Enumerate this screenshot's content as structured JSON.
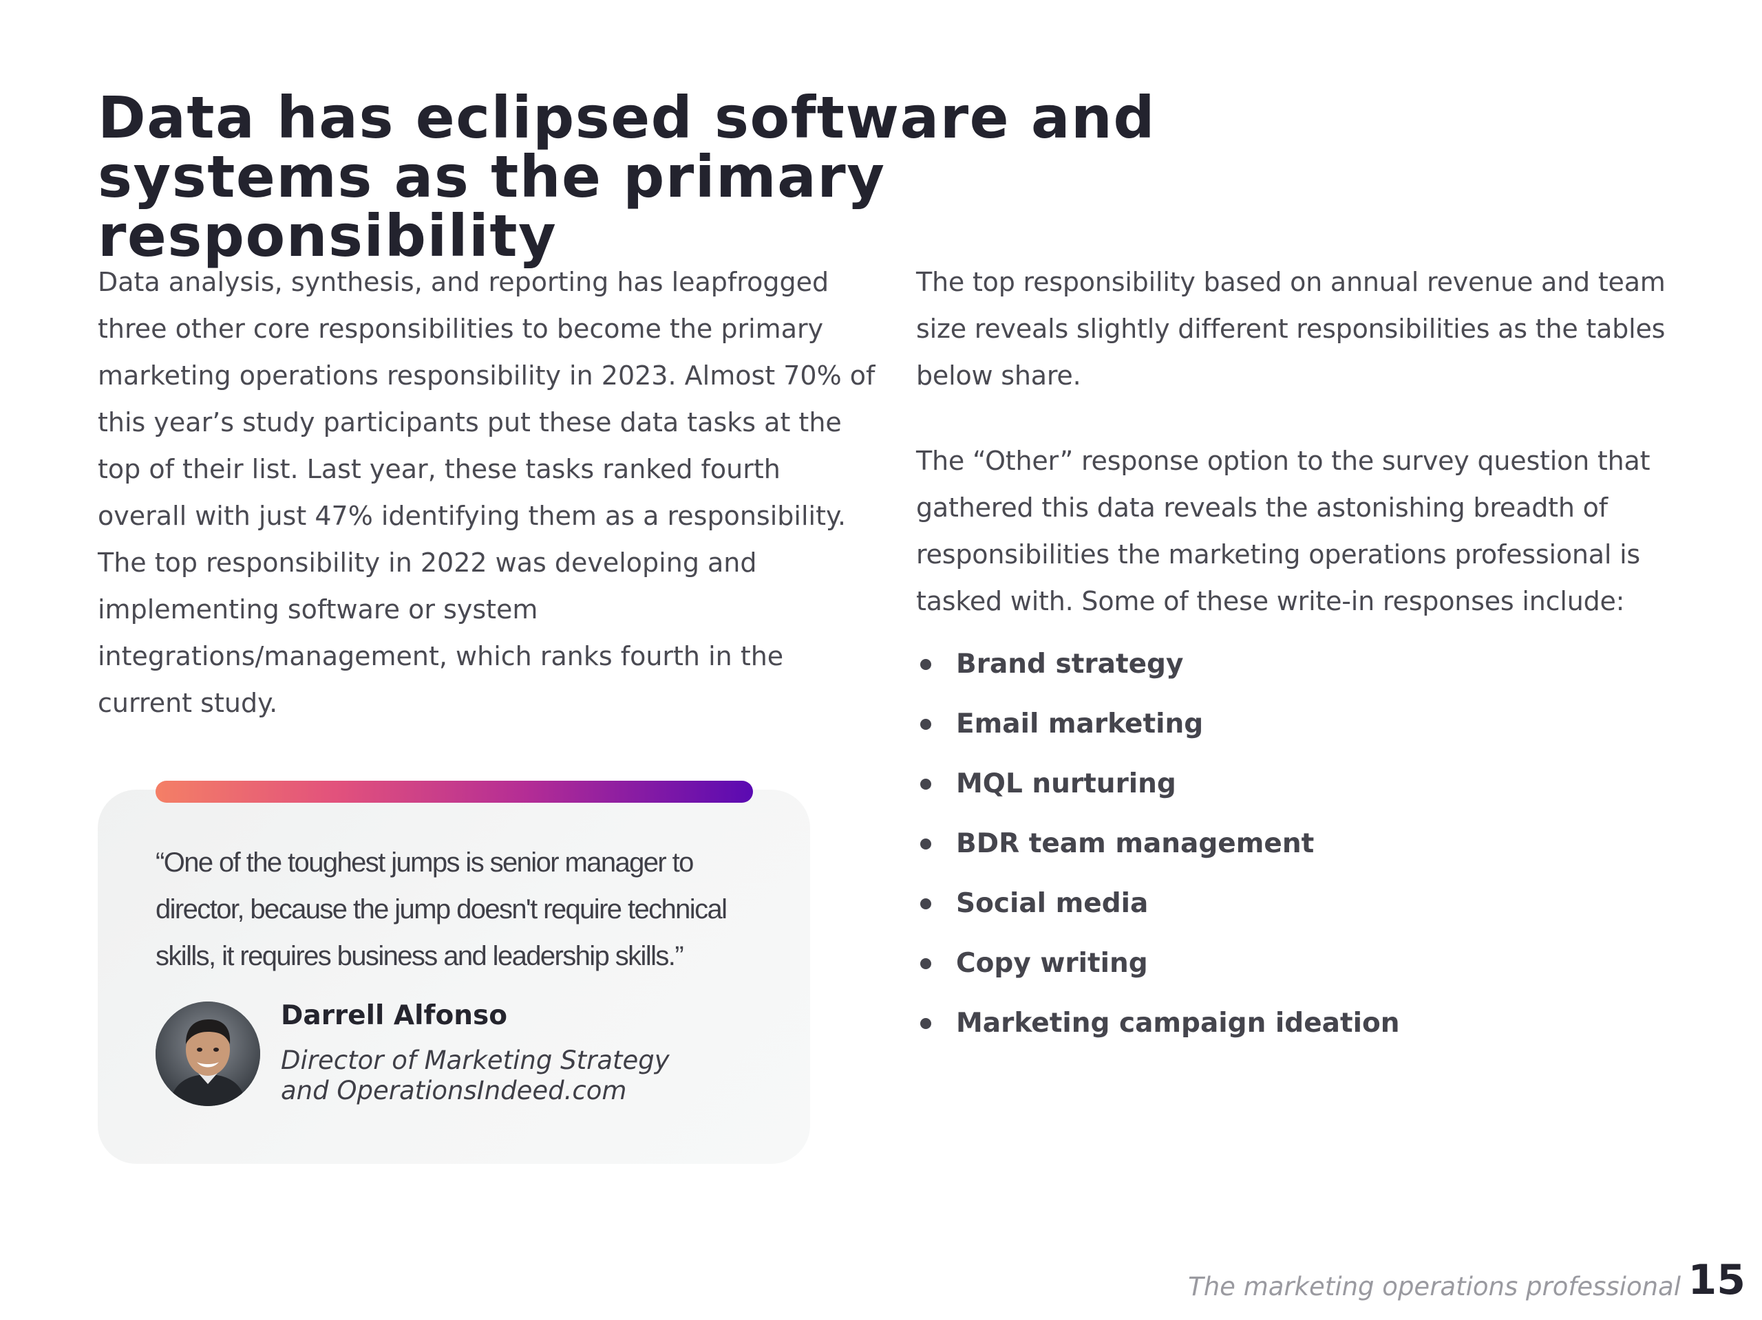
{
  "title": {
    "line1": "Data has eclipsed software and",
    "line2": "systems as the primary responsibility"
  },
  "left_column": {
    "paragraph": "Data analysis, synthesis, and reporting has leapfrogged three other core responsibilities to become the primary marketing operations responsibility in 2023. Almost 70% of this year’s study participants put these data tasks at the top of their list. Last year, these tasks ranked fourth overall with just 47% identifying them as a responsibility. The top responsibility in 2022 was developing and implementing software or system integrations/management, which ranks fourth in the current study."
  },
  "right_column": {
    "paragraph1": "The top responsibility based on annual revenue  and team size reveals slightly different responsibilities as the tables below share.",
    "paragraph2": "The “Other” response option to the survey question that gathered this data reveals the astonishing breadth of responsibilities the marketing operations professional is tasked with. Some of these write-in responses include:",
    "bullets": [
      "Brand strategy",
      "Email marketing",
      "MQL nurturing",
      "BDR team management",
      "Social media",
      "Copy writing",
      "Marketing campaign ideation"
    ]
  },
  "quote": {
    "text": "“One of the toughest jumps is senior manager to director, because the jump doesn't require technical skills, it requires business and leadership skills.”",
    "author_name": "Darrell Alfonso",
    "author_title_line1": "Director of Marketing Strategy",
    "author_title_line2": "and OperationsIndeed.com",
    "accent_gradient": [
      "#f47f66",
      "#e2527c",
      "#b42d95",
      "#5a0ab2"
    ]
  },
  "footer": {
    "label": "The marketing operations professional",
    "page_number": "15"
  }
}
